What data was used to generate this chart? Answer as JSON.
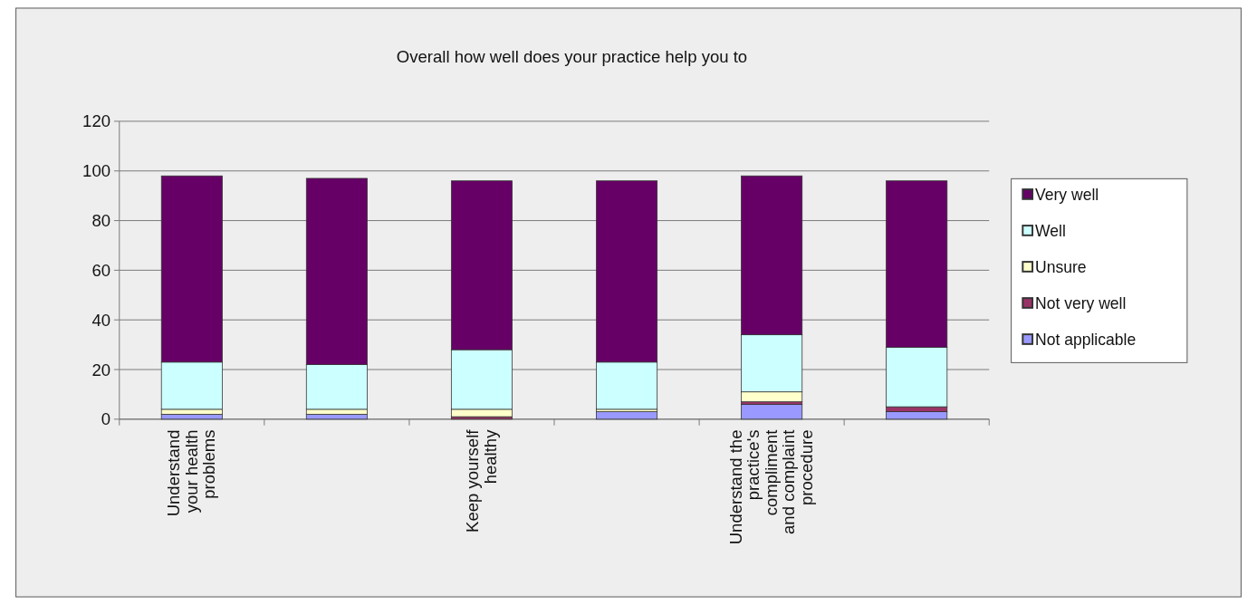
{
  "chart_data": {
    "type": "bar",
    "title": "Overall how well does your practice help you to",
    "stacked": true,
    "categories": [
      "Understand\nyour health\nproblems",
      null,
      "Keep yourself\nhealthy",
      null,
      "Understand the\npractice's\ncompliment\nand complaint\nprocedure",
      null
    ],
    "series": [
      {
        "name": "Not applicable",
        "color": "#9999ff",
        "values": [
          2,
          2,
          0,
          3,
          6,
          3
        ]
      },
      {
        "name": "Not very well",
        "color": "#993366",
        "values": [
          0,
          0,
          1,
          0,
          1,
          2
        ]
      },
      {
        "name": "Unsure",
        "color": "#ffffcc",
        "values": [
          2,
          2,
          3,
          1,
          4,
          0
        ]
      },
      {
        "name": "Well",
        "color": "#ccffff",
        "values": [
          19,
          18,
          24,
          19,
          23,
          24
        ]
      },
      {
        "name": "Very well",
        "color": "#660066",
        "values": [
          75,
          75,
          68,
          73,
          64,
          67
        ]
      }
    ],
    "ylim": [
      0,
      120
    ],
    "yticks": [
      0,
      20,
      40,
      60,
      80,
      100,
      120
    ],
    "grid": "y",
    "legend": "right"
  }
}
